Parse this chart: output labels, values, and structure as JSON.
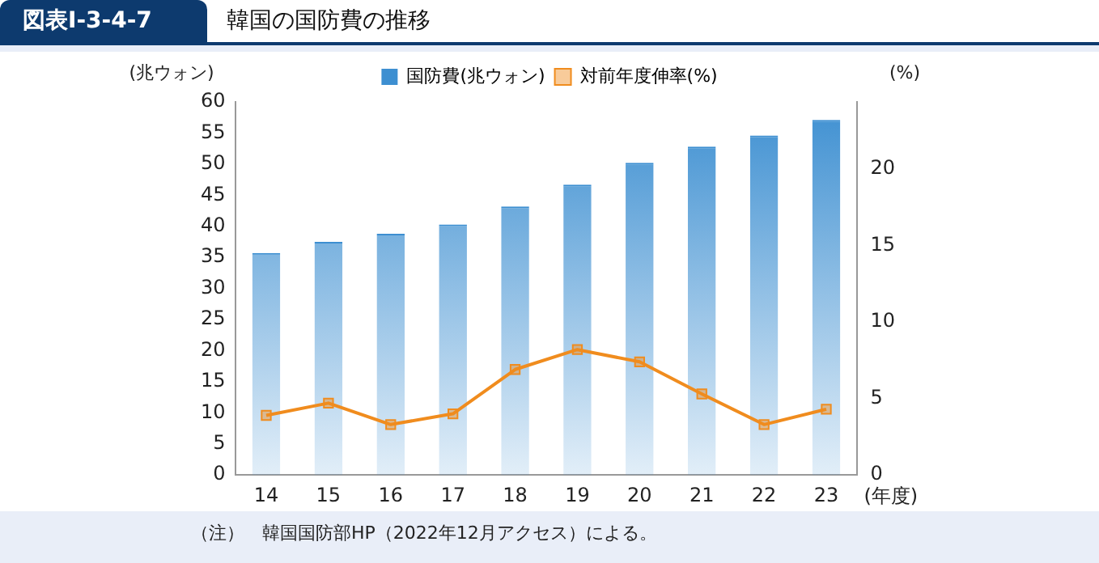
{
  "chart_data": {
    "type": "bar",
    "title": "図表Ⅰ-3-4-7",
    "subtitle": "韓国の国防費の推移",
    "ylabel": "(兆ウォン)",
    "y2label": "(%)",
    "xlabel": "(年度)",
    "categories": [
      "14",
      "15",
      "16",
      "17",
      "18",
      "19",
      "20",
      "21",
      "22",
      "23"
    ],
    "series": [
      {
        "name": "国防費(兆ウォン)",
        "color": "#3d8fd1",
        "values": [
          35.7,
          37.5,
          38.8,
          40.3,
          43.2,
          46.7,
          50.2,
          52.8,
          54.6,
          57.1
        ]
      },
      {
        "name": "対前年度伸率(%)",
        "type": "line",
        "axis": "y2",
        "color": "#f08c1e",
        "marker": "square",
        "values": [
          3.9,
          4.7,
          3.3,
          4.0,
          6.9,
          8.2,
          7.4,
          5.3,
          3.3,
          4.3
        ]
      }
    ],
    "ylim": [
      0,
      60
    ],
    "yticks": [
      0,
      5,
      10,
      15,
      20,
      25,
      30,
      35,
      40,
      45,
      50,
      55,
      60
    ],
    "y2lim": [
      0,
      24.4
    ],
    "y2ticks": [
      0,
      5,
      10,
      15,
      20
    ],
    "grid": false,
    "legend": "top",
    "annotations": [
      "（注）　韓国国防部HP（2022年12月アクセス）による。"
    ]
  }
}
